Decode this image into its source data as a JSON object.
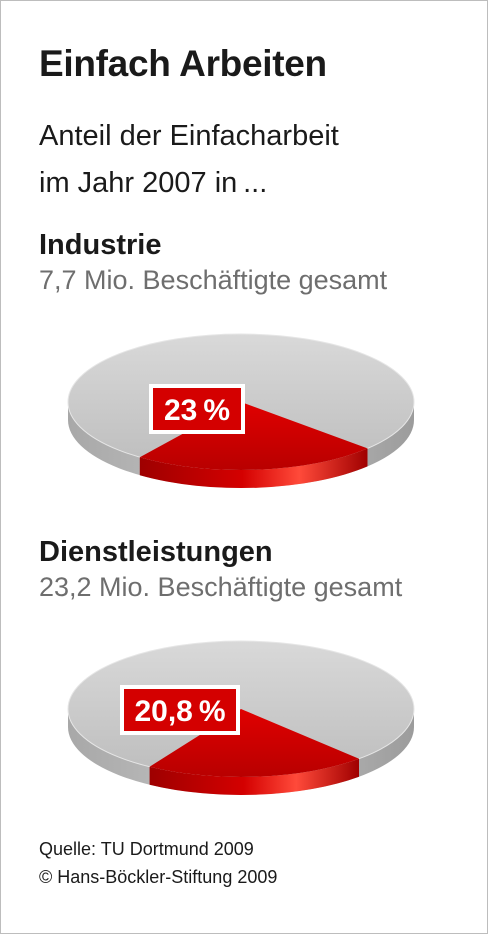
{
  "header": {
    "title": "Einfach Arbeiten",
    "subtitle_line1": "Anteil der Einfacharbeit",
    "subtitle_line2": "im Jahr 2007 in ..."
  },
  "chart_data": [
    {
      "type": "pie",
      "title": "Industrie",
      "subtitle": "7,7 Mio. Beschäftigte gesamt",
      "slices": [
        {
          "label": "Einfacharbeit",
          "value": 23,
          "display": "23 %",
          "color": "#d40000"
        },
        {
          "label": "",
          "value": 77,
          "color": "#c8c8c8"
        }
      ]
    },
    {
      "type": "pie",
      "title": "Dienstleistungen",
      "subtitle": "23,2 Mio. Beschäftigte gesamt",
      "slices": [
        {
          "label": "Einfacharbeit",
          "value": 20.8,
          "display": "20,8 %",
          "color": "#d40000"
        },
        {
          "label": "",
          "value": 79.2,
          "color": "#c8c8c8"
        }
      ]
    }
  ],
  "footer": {
    "source": "Quelle: TU Dortmund 2009",
    "copyright": "© Hans-Böckler-Stiftung 2009"
  }
}
